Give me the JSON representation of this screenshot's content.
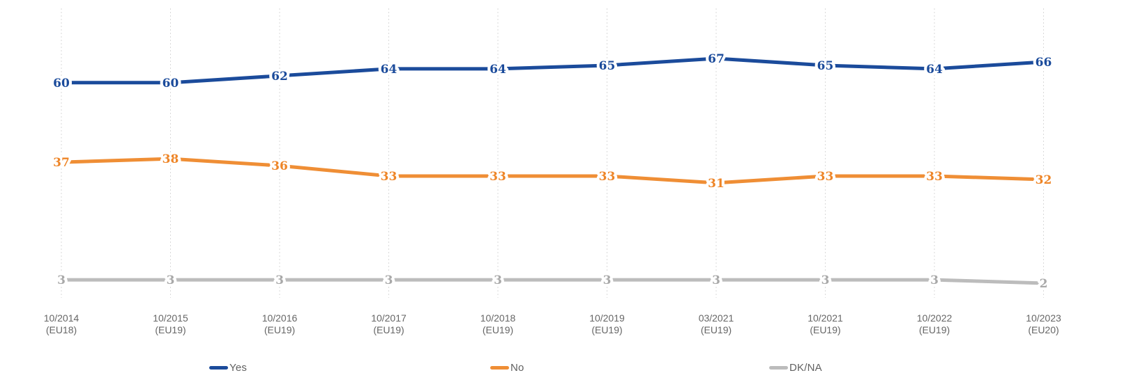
{
  "chart_data": {
    "type": "line",
    "categories": [
      {
        "period": "10/2014",
        "eu": "(EU18)"
      },
      {
        "period": "10/2015",
        "eu": "(EU19)"
      },
      {
        "period": "10/2016",
        "eu": "(EU19)"
      },
      {
        "period": "10/2017",
        "eu": "(EU19)"
      },
      {
        "period": "10/2018",
        "eu": "(EU19)"
      },
      {
        "period": "10/2019",
        "eu": "(EU19)"
      },
      {
        "period": "03/2021",
        "eu": "(EU19)"
      },
      {
        "period": "10/2021",
        "eu": "(EU19)"
      },
      {
        "period": "10/2022",
        "eu": "(EU19)"
      },
      {
        "period": "10/2023",
        "eu": "(EU20)"
      }
    ],
    "series": [
      {
        "name": "Yes",
        "color": "#1b4b9b",
        "label_color": "#1b4b9b",
        "values": [
          60,
          60,
          62,
          64,
          64,
          65,
          67,
          65,
          64,
          66
        ]
      },
      {
        "name": "No",
        "color": "#ef8e35",
        "label_color": "#ee8527",
        "values": [
          37,
          38,
          36,
          33,
          33,
          33,
          31,
          33,
          33,
          32
        ]
      },
      {
        "name": "DK/NA",
        "color": "#bcbcbc",
        "label_color": "#a9a9a9",
        "values": [
          3,
          3,
          3,
          3,
          3,
          3,
          3,
          3,
          3,
          2
        ]
      }
    ],
    "ylim": [
      0,
      80
    ],
    "grid": "vertical-dashed",
    "legend_position": "bottom",
    "value_labels": "shown at every point"
  },
  "colors": {
    "background": "#ffffff",
    "grid": "#d9d9d9",
    "axis_text": "#666666",
    "legend_text": "#616161"
  }
}
